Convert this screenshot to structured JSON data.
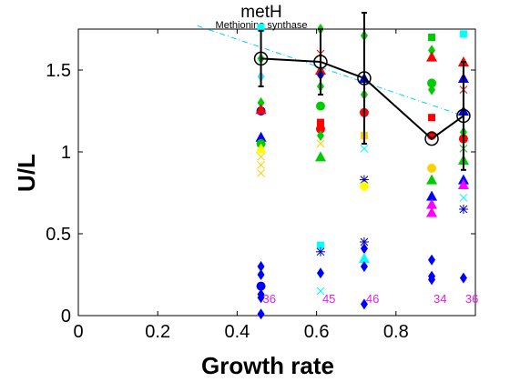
{
  "chart_data": {
    "type": "scatter",
    "title": "metH",
    "subtitle": "Methionine synthase",
    "xlabel": "Growth rate",
    "ylabel": "U/L",
    "xlim": [
      0,
      1.0
    ],
    "ylim": [
      0,
      1.75
    ],
    "x_ticks": [
      "0",
      "0.2",
      "0.4",
      "0.6",
      "0.8"
    ],
    "y_ticks": [
      "0",
      "0.5",
      "1",
      "1.5"
    ],
    "grid": false,
    "colors": {
      "mean_line": "#000000",
      "fit_line": "#00cfff",
      "count_labels": "#e020e0"
    },
    "mean_series": {
      "x": [
        0.46,
        0.61,
        0.72,
        0.89,
        0.97
      ],
      "y": [
        1.57,
        1.55,
        1.45,
        1.08,
        1.22
      ],
      "err": [
        0.17,
        0.2,
        0.4,
        0.0,
        0.33
      ]
    },
    "fit_line": {
      "x": [
        0.3,
        0.97
      ],
      "y": [
        1.77,
        1.22
      ]
    },
    "count_labels": [
      {
        "x": 0.46,
        "text": "36"
      },
      {
        "x": 0.61,
        "text": "45"
      },
      {
        "x": 0.72,
        "text": "46"
      },
      {
        "x": 0.89,
        "text": "34"
      },
      {
        "x": 0.97,
        "text": "36"
      }
    ],
    "points": [
      {
        "x": 0.46,
        "y": 1.76,
        "shape": "square",
        "color": "#00ffff"
      },
      {
        "x": 0.46,
        "y": 1.57,
        "shape": "diamond",
        "color": "#00cc00"
      },
      {
        "x": 0.46,
        "y": 1.46,
        "shape": "diamond",
        "color": "#40e0ff"
      },
      {
        "x": 0.46,
        "y": 1.3,
        "shape": "diamond",
        "color": "#00cc00"
      },
      {
        "x": 0.46,
        "y": 1.25,
        "shape": "circle",
        "color": "#0000cc"
      },
      {
        "x": 0.46,
        "y": 1.26,
        "shape": "triangle",
        "color": "#ff0000"
      },
      {
        "x": 0.46,
        "y": 1.09,
        "shape": "triangle",
        "color": "#0000ff"
      },
      {
        "x": 0.46,
        "y": 1.05,
        "shape": "circle",
        "color": "#00cc00"
      },
      {
        "x": 0.46,
        "y": 1.02,
        "shape": "triangle",
        "color": "#ffff00"
      },
      {
        "x": 0.46,
        "y": 0.97,
        "shape": "x",
        "color": "#ffd000"
      },
      {
        "x": 0.46,
        "y": 0.92,
        "shape": "x",
        "color": "#ffd000"
      },
      {
        "x": 0.46,
        "y": 0.87,
        "shape": "x",
        "color": "#ffd000"
      },
      {
        "x": 0.46,
        "y": 0.3,
        "shape": "diamond",
        "color": "#0000ff"
      },
      {
        "x": 0.46,
        "y": 0.25,
        "shape": "diamond",
        "color": "#0000ff"
      },
      {
        "x": 0.46,
        "y": 0.18,
        "shape": "circle",
        "color": "#0000ff"
      },
      {
        "x": 0.46,
        "y": 0.13,
        "shape": "diamond",
        "color": "#0000ff"
      },
      {
        "x": 0.46,
        "y": 0.11,
        "shape": "diamond",
        "color": "#0000ff"
      },
      {
        "x": 0.46,
        "y": 0.01,
        "shape": "diamond",
        "color": "#0000ff"
      },
      {
        "x": 0.61,
        "y": 1.75,
        "shape": "diamond",
        "color": "#00cc00"
      },
      {
        "x": 0.61,
        "y": 1.6,
        "shape": "x",
        "color": "#ff0000"
      },
      {
        "x": 0.61,
        "y": 1.5,
        "shape": "triangle",
        "color": "#ff0000"
      },
      {
        "x": 0.61,
        "y": 1.47,
        "shape": "diamond",
        "color": "#0000ff"
      },
      {
        "x": 0.61,
        "y": 1.4,
        "shape": "diamond",
        "color": "#00cc00"
      },
      {
        "x": 0.61,
        "y": 1.28,
        "shape": "circle",
        "color": "#00cc00"
      },
      {
        "x": 0.61,
        "y": 1.18,
        "shape": "square",
        "color": "#ff0000"
      },
      {
        "x": 0.61,
        "y": 1.14,
        "shape": "circle",
        "color": "#ff0000"
      },
      {
        "x": 0.61,
        "y": 1.1,
        "shape": "diamond",
        "color": "#00cc00"
      },
      {
        "x": 0.61,
        "y": 1.05,
        "shape": "x",
        "color": "#ffd000"
      },
      {
        "x": 0.61,
        "y": 0.97,
        "shape": "triangle",
        "color": "#00cc00"
      },
      {
        "x": 0.61,
        "y": 0.43,
        "shape": "square",
        "color": "#00ffff"
      },
      {
        "x": 0.61,
        "y": 0.39,
        "shape": "star",
        "color": "#0000aa"
      },
      {
        "x": 0.61,
        "y": 0.26,
        "shape": "diamond",
        "color": "#0000ff"
      },
      {
        "x": 0.61,
        "y": 0.15,
        "shape": "x",
        "color": "#00ffff"
      },
      {
        "x": 0.72,
        "y": 1.71,
        "shape": "diamond",
        "color": "#00cc00"
      },
      {
        "x": 0.72,
        "y": 1.45,
        "shape": "triangle",
        "color": "#0000ff"
      },
      {
        "x": 0.72,
        "y": 1.35,
        "shape": "diamond",
        "color": "#00cc00"
      },
      {
        "x": 0.72,
        "y": 1.24,
        "shape": "circle",
        "color": "#ff0000"
      },
      {
        "x": 0.72,
        "y": 1.1,
        "shape": "square",
        "color": "#ffd000"
      },
      {
        "x": 0.72,
        "y": 1.02,
        "shape": "x",
        "color": "#00ffff"
      },
      {
        "x": 0.72,
        "y": 0.83,
        "shape": "star",
        "color": "#0000aa"
      },
      {
        "x": 0.72,
        "y": 0.79,
        "shape": "circle",
        "color": "#ffff00"
      },
      {
        "x": 0.72,
        "y": 0.45,
        "shape": "star",
        "color": "#0000aa"
      },
      {
        "x": 0.72,
        "y": 0.41,
        "shape": "diamond",
        "color": "#0000ff"
      },
      {
        "x": 0.72,
        "y": 0.35,
        "shape": "triangle",
        "color": "#00ffff"
      },
      {
        "x": 0.72,
        "y": 0.3,
        "shape": "diamond",
        "color": "#0000ff"
      },
      {
        "x": 0.72,
        "y": 0.07,
        "shape": "diamond",
        "color": "#0000ff"
      },
      {
        "x": 0.89,
        "y": 1.7,
        "shape": "square",
        "color": "#00cc00"
      },
      {
        "x": 0.89,
        "y": 1.62,
        "shape": "diamond",
        "color": "#00cc00"
      },
      {
        "x": 0.89,
        "y": 1.58,
        "shape": "triangle",
        "color": "#ff0000"
      },
      {
        "x": 0.89,
        "y": 1.42,
        "shape": "circle",
        "color": "#00cc00"
      },
      {
        "x": 0.89,
        "y": 1.38,
        "shape": "diamond",
        "color": "#00cc00"
      },
      {
        "x": 0.89,
        "y": 1.21,
        "shape": "square",
        "color": "#ff0000"
      },
      {
        "x": 0.89,
        "y": 1.1,
        "shape": "circle",
        "color": "#ff0000"
      },
      {
        "x": 0.89,
        "y": 0.9,
        "shape": "circle",
        "color": "#ffd000"
      },
      {
        "x": 0.89,
        "y": 0.83,
        "shape": "triangle",
        "color": "#00cc00"
      },
      {
        "x": 0.89,
        "y": 0.73,
        "shape": "triangle",
        "color": "#0000ff"
      },
      {
        "x": 0.89,
        "y": 0.68,
        "shape": "triangle",
        "color": "#ff00ff"
      },
      {
        "x": 0.89,
        "y": 0.63,
        "shape": "triangle",
        "color": "#ff00ff"
      },
      {
        "x": 0.89,
        "y": 0.34,
        "shape": "diamond",
        "color": "#0000ff"
      },
      {
        "x": 0.89,
        "y": 0.24,
        "shape": "diamond",
        "color": "#0000ff"
      },
      {
        "x": 0.89,
        "y": 0.22,
        "shape": "diamond",
        "color": "#0000ff"
      },
      {
        "x": 0.97,
        "y": 1.72,
        "shape": "square",
        "color": "#00ffff"
      },
      {
        "x": 0.97,
        "y": 1.55,
        "shape": "triangle",
        "color": "#ff0000"
      },
      {
        "x": 0.97,
        "y": 1.45,
        "shape": "triangle",
        "color": "#0000ff"
      },
      {
        "x": 0.97,
        "y": 1.38,
        "shape": "x",
        "color": "#ff0000"
      },
      {
        "x": 0.97,
        "y": 1.25,
        "shape": "triangle",
        "color": "#0000ff"
      },
      {
        "x": 0.97,
        "y": 1.12,
        "shape": "diamond",
        "color": "#00cc00"
      },
      {
        "x": 0.97,
        "y": 1.08,
        "shape": "circle",
        "color": "#ff0000"
      },
      {
        "x": 0.97,
        "y": 1.02,
        "shape": "x",
        "color": "#00cc00"
      },
      {
        "x": 0.97,
        "y": 0.95,
        "shape": "triangle",
        "color": "#00cc00"
      },
      {
        "x": 0.97,
        "y": 0.83,
        "shape": "triangle",
        "color": "#0000ff"
      },
      {
        "x": 0.97,
        "y": 0.8,
        "shape": "triangle",
        "color": "#ff00ff"
      },
      {
        "x": 0.97,
        "y": 0.72,
        "shape": "x",
        "color": "#00ffff"
      },
      {
        "x": 0.97,
        "y": 0.65,
        "shape": "star",
        "color": "#0000aa"
      },
      {
        "x": 0.97,
        "y": 0.23,
        "shape": "diamond",
        "color": "#0000ff"
      }
    ]
  }
}
